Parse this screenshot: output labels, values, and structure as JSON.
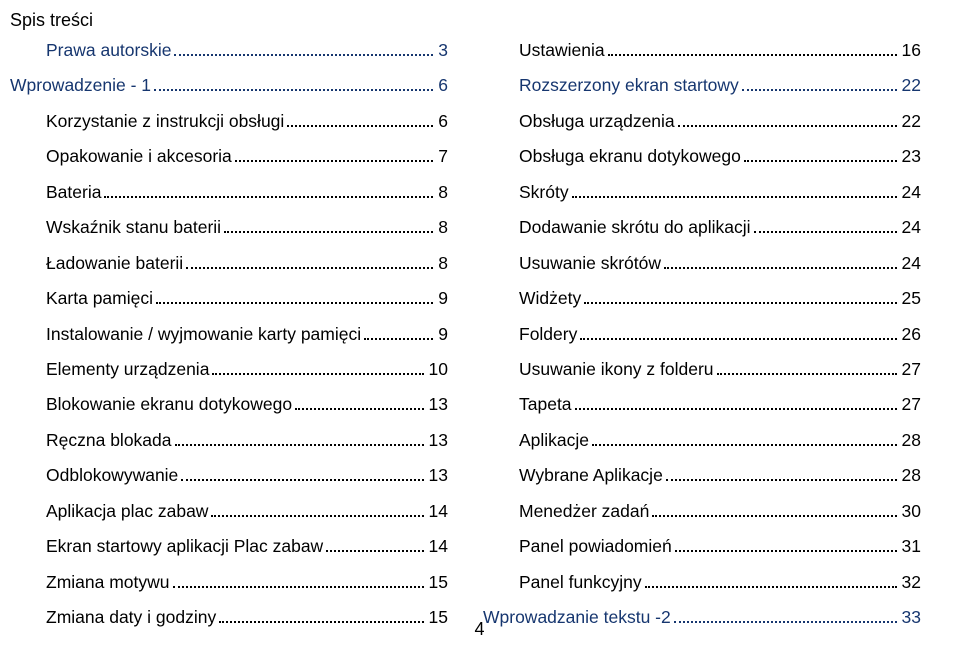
{
  "title": "Spis treści",
  "page_number": "4",
  "colors": {
    "text": "#000000",
    "link": "#16366f",
    "background": "#ffffff"
  },
  "typography": {
    "title_fontsize": 18,
    "entry_fontsize": 17.5,
    "font_family": "Arial"
  },
  "left_column": [
    {
      "label": "Prawa autorskie",
      "page": "3",
      "link": true,
      "indent": true
    },
    {
      "label": "Wprowadzenie - 1",
      "page": "6",
      "link": true,
      "indent": false
    },
    {
      "label": "Korzystanie z instrukcji obsługi",
      "page": "6",
      "link": false,
      "indent": true
    },
    {
      "label": "Opakowanie i akcesoria",
      "page": "7",
      "link": false,
      "indent": true
    },
    {
      "label": "Bateria",
      "page": "8",
      "link": false,
      "indent": true
    },
    {
      "label": "Wskaźnik stanu baterii",
      "page": "8",
      "link": false,
      "indent": true
    },
    {
      "label": "Ładowanie baterii",
      "page": "8",
      "link": false,
      "indent": true
    },
    {
      "label": "Karta pamięci",
      "page": "9",
      "link": false,
      "indent": true
    },
    {
      "label": "Instalowanie / wyjmowanie karty pamięci",
      "page": "9",
      "link": false,
      "indent": true
    },
    {
      "label": "Elementy urządzenia",
      "page": "10",
      "link": false,
      "indent": true
    },
    {
      "label": "Blokowanie ekranu dotykowego",
      "page": "13",
      "link": false,
      "indent": true
    },
    {
      "label": "Ręczna blokada",
      "page": "13",
      "link": false,
      "indent": true
    },
    {
      "label": "Odblokowywanie",
      "page": "13",
      "link": false,
      "indent": true
    },
    {
      "label": "Aplikacja plac zabaw",
      "page": "14",
      "link": false,
      "indent": true
    },
    {
      "label": "Ekran startowy aplikacji Plac zabaw",
      "page": "14",
      "link": false,
      "indent": true
    },
    {
      "label": "Zmiana motywu",
      "page": "15",
      "link": false,
      "indent": true
    },
    {
      "label": "Zmiana daty i godziny",
      "page": "15",
      "link": false,
      "indent": true
    }
  ],
  "right_column": [
    {
      "label": "Ustawienia",
      "page": "16",
      "link": false,
      "indent": true
    },
    {
      "label": "Rozszerzony ekran startowy",
      "page": "22",
      "link": true,
      "indent": true
    },
    {
      "label": "Obsługa urządzenia",
      "page": "22",
      "link": false,
      "indent": true
    },
    {
      "label": "Obsługa ekranu dotykowego",
      "page": "23",
      "link": false,
      "indent": true
    },
    {
      "label": "Skróty",
      "page": "24",
      "link": false,
      "indent": true
    },
    {
      "label": "Dodawanie skrótu do aplikacji",
      "page": "24",
      "link": false,
      "indent": true
    },
    {
      "label": "Usuwanie skrótów",
      "page": "24",
      "link": false,
      "indent": true
    },
    {
      "label": "Widżety",
      "page": "25",
      "link": false,
      "indent": true
    },
    {
      "label": "Foldery",
      "page": "26",
      "link": false,
      "indent": true
    },
    {
      "label": "Usuwanie ikony z folderu",
      "page": "27",
      "link": false,
      "indent": true
    },
    {
      "label": "Tapeta",
      "page": "27",
      "link": false,
      "indent": true
    },
    {
      "label": "Aplikacje",
      "page": "28",
      "link": false,
      "indent": true
    },
    {
      "label": "Wybrane Aplikacje",
      "page": "28",
      "link": false,
      "indent": true
    },
    {
      "label": "Menedżer zadań",
      "page": "30",
      "link": false,
      "indent": true
    },
    {
      "label": "Panel powiadomień",
      "page": "31",
      "link": false,
      "indent": true
    },
    {
      "label": "Panel funkcyjny",
      "page": "32",
      "link": false,
      "indent": true
    },
    {
      "label": "Wprowadzanie tekstu -2",
      "page": "33",
      "link": true,
      "indent": false
    }
  ]
}
